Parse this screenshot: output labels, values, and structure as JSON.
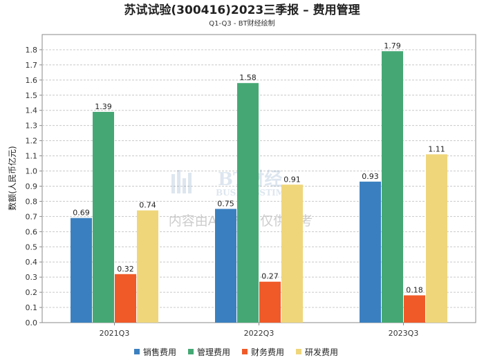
{
  "chart_data": {
    "type": "bar",
    "title": "苏试试验(300416)2023三季报 – 费用管理",
    "subtitle": "Q1-Q3 - BT财经绘制",
    "ylabel": "数额(人民币亿元)",
    "xlabel": "",
    "categories": [
      "2021Q3",
      "2022Q3",
      "2023Q3"
    ],
    "ylim": [
      0,
      1.9
    ],
    "yticks": [
      0.0,
      0.1,
      0.2,
      0.3,
      0.4,
      0.5,
      0.6,
      0.7,
      0.8,
      0.9,
      1.0,
      1.1,
      1.2,
      1.3,
      1.4,
      1.5,
      1.6,
      1.7,
      1.8
    ],
    "grid": true,
    "legend_position": "bottom",
    "series": [
      {
        "name": "销售费用",
        "color": "#3a80c0",
        "values": [
          0.69,
          0.75,
          0.93
        ]
      },
      {
        "name": "管理费用",
        "color": "#45a874",
        "values": [
          1.39,
          1.58,
          1.79
        ]
      },
      {
        "name": "财务费用",
        "color": "#f05a28",
        "values": [
          0.32,
          0.27,
          0.18
        ]
      },
      {
        "name": "研发费用",
        "color": "#efd67a",
        "values": [
          0.74,
          0.91,
          1.11
        ]
      }
    ]
  },
  "watermark": {
    "brand": "BT财经",
    "brand_en": "BUSINESSTIMES",
    "notice": "内容由AI生成，仅供参考"
  }
}
